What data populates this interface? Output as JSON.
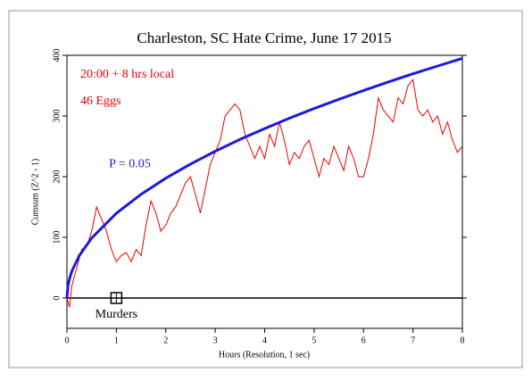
{
  "chart_data": {
    "type": "line",
    "title": "Charleston, SC Hate Crime, June 17 2015",
    "annotations": [
      "20:00 + 8 hrs local",
      "46 Eggs"
    ],
    "x_label": "Hours (Resolution, 1 sec)",
    "y_label": "Cumsum (Z^2 - 1)",
    "xlim": [
      0,
      8
    ],
    "xticks": [
      0,
      1,
      2,
      3,
      4,
      5,
      6,
      7,
      8
    ],
    "ylim": [
      -50,
      400
    ],
    "yticks": [
      0,
      100,
      200,
      300,
      400
    ],
    "event": {
      "x": 1,
      "y": 0,
      "label": "Murders"
    },
    "series": [
      {
        "color": "#e80000",
        "x": [
          0,
          0.05,
          0.1,
          0.2,
          0.3,
          0.4,
          0.5,
          0.6,
          0.7,
          0.8,
          0.9,
          1.0,
          1.1,
          1.2,
          1.3,
          1.4,
          1.5,
          1.6,
          1.7,
          1.8,
          1.9,
          2.0,
          2.1,
          2.2,
          2.3,
          2.4,
          2.5,
          2.6,
          2.7,
          2.8,
          2.9,
          3.0,
          3.1,
          3.2,
          3.3,
          3.4,
          3.5,
          3.6,
          3.7,
          3.8,
          3.9,
          4.0,
          4.1,
          4.2,
          4.3,
          4.4,
          4.5,
          4.6,
          4.7,
          4.8,
          4.9,
          5.0,
          5.1,
          5.2,
          5.3,
          5.4,
          5.5,
          5.6,
          5.7,
          5.8,
          5.9,
          6.0,
          6.1,
          6.2,
          6.3,
          6.4,
          6.5,
          6.6,
          6.7,
          6.8,
          6.9,
          7.0,
          7.1,
          7.2,
          7.3,
          7.4,
          7.5,
          7.6,
          7.7,
          7.8,
          7.9,
          8.0
        ],
        "values": [
          0,
          -15,
          20,
          50,
          80,
          85,
          110,
          150,
          130,
          110,
          80,
          60,
          70,
          75,
          60,
          80,
          70,
          120,
          160,
          140,
          110,
          120,
          140,
          150,
          170,
          190,
          200,
          170,
          140,
          180,
          220,
          240,
          260,
          300,
          310,
          320,
          310,
          270,
          250,
          230,
          250,
          230,
          270,
          250,
          290,
          260,
          220,
          240,
          230,
          250,
          260,
          230,
          200,
          230,
          220,
          250,
          230,
          210,
          250,
          230,
          200,
          200,
          230,
          270,
          330,
          310,
          300,
          290,
          330,
          320,
          350,
          360,
          310,
          300,
          310,
          290,
          300,
          270,
          290,
          260,
          240,
          250
        ]
      },
      {
        "name": "P = 0.05",
        "color": "#1a1adc",
        "x": [
          0,
          0.02,
          0.05,
          0.1,
          0.25,
          0.5,
          1,
          1.5,
          2,
          2.5,
          3,
          3.5,
          4,
          4.5,
          5,
          5.5,
          6,
          6.5,
          7,
          7.5,
          8
        ],
        "values": [
          0,
          19.8,
          31.2,
          44.2,
          69.8,
          98.8,
          139.7,
          171.0,
          197.5,
          220.8,
          241.9,
          261.3,
          279.3,
          296.3,
          312.3,
          327.5,
          342.1,
          356.0,
          369.5,
          382.4,
          395
        ]
      }
    ]
  }
}
